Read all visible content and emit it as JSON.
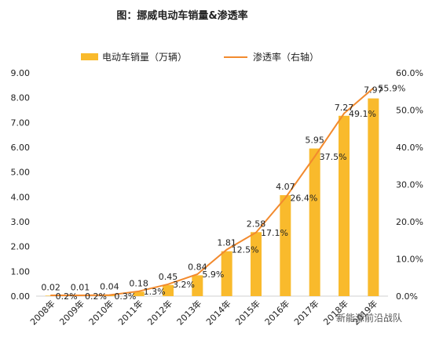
{
  "chart_data": {
    "type": "bar",
    "title": "图：挪威电动车销量&渗透率",
    "categories": [
      "2008年",
      "2009年",
      "2010年",
      "2011年",
      "2012年",
      "2013年",
      "2014年",
      "2015年",
      "2016年",
      "2017年",
      "2018年",
      "2019年"
    ],
    "series": [
      {
        "name": "电动车销量（万辆）",
        "type": "bar",
        "axis": "left",
        "color": "#F9BA2C",
        "values": [
          0.02,
          0.01,
          0.04,
          0.18,
          0.45,
          0.84,
          1.81,
          2.58,
          4.07,
          5.95,
          7.27,
          7.97
        ],
        "labels": [
          "0.02",
          "0.01",
          "0.04",
          "0.18",
          "0.45",
          "0.84",
          "1.81",
          "2.58",
          "4.07",
          "5.95",
          "7.27",
          "7.97"
        ]
      },
      {
        "name": "渗透率（右轴）",
        "type": "line",
        "axis": "right",
        "color": "#F28A2E",
        "values": [
          0.2,
          0.2,
          0.3,
          1.3,
          3.2,
          5.9,
          12.5,
          17.1,
          26.4,
          37.5,
          49.1,
          55.9
        ],
        "labels": [
          "0.2%",
          "0.2%",
          "0.3%",
          "1.3%",
          "3.2%",
          "5.9%",
          "12.5%",
          "17.1%",
          "26.4%",
          "37.5%",
          "49.1%",
          "55.9%"
        ]
      }
    ],
    "yleft": {
      "min": 0,
      "max": 9,
      "ticks": [
        "0.00",
        "1.00",
        "2.00",
        "3.00",
        "4.00",
        "5.00",
        "6.00",
        "7.00",
        "8.00",
        "9.00"
      ]
    },
    "yright": {
      "min": 0,
      "max": 60,
      "ticks": [
        "0.0%",
        "10.0%",
        "20.0%",
        "30.0%",
        "40.0%",
        "50.0%",
        "60.0%"
      ]
    },
    "legend": "top",
    "grid": false
  },
  "watermark": "新能源前沿战队"
}
